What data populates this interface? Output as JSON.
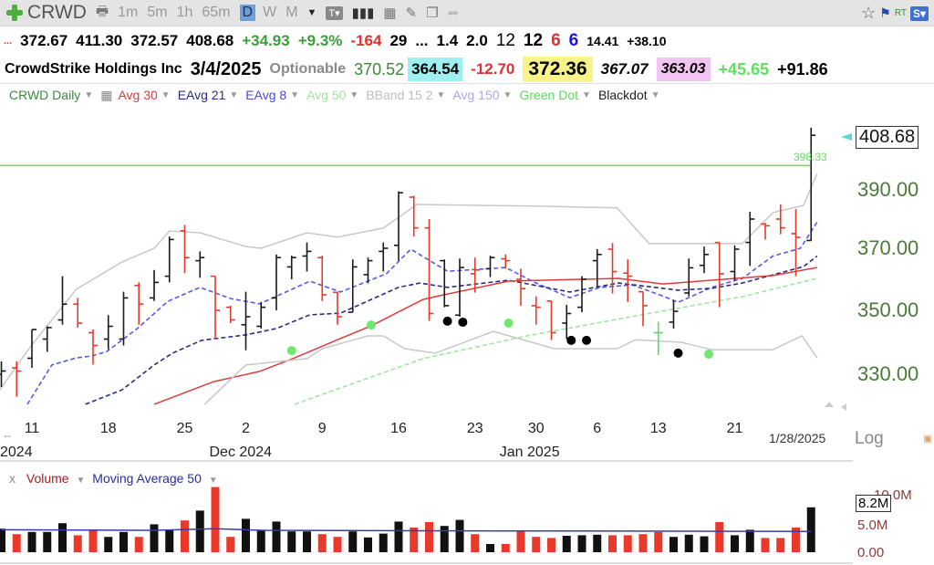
{
  "toolbar": {
    "ticker": "CRWD",
    "intervals": [
      "1m",
      "5m",
      "1h",
      "65m"
    ],
    "selected_interval": "D",
    "other_intervals": [
      "W",
      "M"
    ],
    "icons": [
      "add-icon",
      "print-icon",
      "dropdown-icon",
      "text-tool-icon",
      "bar-style-icon",
      "table-icon",
      "pencil-icon",
      "notes-icon",
      "share-icon",
      "star-icon",
      "flag-icon",
      "scan-icon"
    ],
    "rt_label": "RT",
    "s_label": "S▾"
  },
  "quote_row": {
    "ellipsis": "...",
    "open": "372.67",
    "high": "411.30",
    "low": "372.57",
    "close": "408.68",
    "change": "+34.93",
    "change_pct": "+9.3%",
    "v1": "-164",
    "v2": "29",
    "ellipsis2": "...",
    "v3": "1.4",
    "v4": "2.0",
    "v5": "12",
    "v6": "12",
    "v7": "6",
    "v8": "6",
    "v9": "14.41",
    "v10": "+38.10"
  },
  "info_row": {
    "name": "CrowdStrike Holdings Inc",
    "date": "3/4/2025",
    "optionable": "Optionable",
    "f1": "370.52",
    "f2": "364.54",
    "f3": "-12.70",
    "f4": "372.36",
    "f5": "367.07",
    "f6": "363.03",
    "f7": "+45.65",
    "f8": "+91.86"
  },
  "legend": [
    {
      "label": "CRWD Daily",
      "color": "#3f8a3f"
    },
    {
      "label": "Avg 30",
      "color": "#e03a3a"
    },
    {
      "label": "EAvg 21",
      "color": "#2c2c8c"
    },
    {
      "label": "EAvg 8",
      "color": "#4b4be0"
    },
    {
      "label": "Avg 50",
      "color": "#9ee89e"
    },
    {
      "label": "BBand 15 2",
      "color": "#bdbdbd"
    },
    {
      "label": "Avg 150",
      "color": "#a8a8f0"
    },
    {
      "label": "Green Dot",
      "color": "#5ed85e"
    },
    {
      "label": "Blackdot",
      "color": "#222222"
    }
  ],
  "chart_data": {
    "type": "ohlc",
    "title": "CRWD Daily",
    "y_ticks": [
      "390.00",
      "370.00",
      "350.00",
      "330.00"
    ],
    "y_tick_values": [
      390,
      370,
      350,
      330
    ],
    "last_price_label": "408.68",
    "hline": {
      "value": 398.33,
      "label": "398.33",
      "color": "#5ee05e"
    },
    "x_ticks": [
      {
        "bar": 2,
        "label": "11"
      },
      {
        "bar": 7,
        "label": "18"
      },
      {
        "bar": 12,
        "label": "25"
      },
      {
        "bar": 16,
        "label": "2"
      },
      {
        "bar": 21,
        "label": "9"
      },
      {
        "bar": 26,
        "label": "16"
      },
      {
        "bar": 31,
        "label": "23"
      },
      {
        "bar": 35,
        "label": "30"
      },
      {
        "bar": 39,
        "label": "6"
      },
      {
        "bar": 43,
        "label": "13"
      },
      {
        "bar": 48,
        "label": "21"
      }
    ],
    "month_labels": [
      {
        "bar": 0,
        "label": "2024"
      },
      {
        "bar": 16,
        "label": "Dec 2024"
      },
      {
        "bar": 35,
        "label": "Jan 2025"
      }
    ],
    "end_date": "1/28/2025",
    "scale_label": "Log",
    "bars": [
      [
        330,
        334,
        326,
        331,
        "k",
        4.3
      ],
      [
        332,
        334,
        323,
        331,
        "r",
        3.3
      ],
      [
        335,
        344,
        332,
        344,
        "k",
        3.7
      ],
      [
        341,
        345,
        337,
        344.6,
        "k",
        3.7
      ],
      [
        347,
        361,
        345.5,
        352,
        "k",
        5.3
      ],
      [
        352,
        354,
        344.6,
        346,
        "r",
        3.1
      ],
      [
        343,
        344,
        333,
        339,
        "r",
        4.0
      ],
      [
        341,
        348.5,
        337.8,
        345,
        "k",
        2.8
      ],
      [
        341,
        356,
        339,
        354,
        "k",
        3.7
      ],
      [
        358,
        359,
        345.5,
        352,
        "r",
        2.8
      ],
      [
        354,
        363,
        353,
        359,
        "k",
        5.1
      ],
      [
        361,
        374,
        359,
        373,
        "k",
        4.0
      ],
      [
        376,
        378,
        362,
        367,
        "r",
        5.8
      ],
      [
        366,
        369,
        360.5,
        367,
        "k",
        7.6
      ],
      [
        361,
        361,
        341,
        350,
        "r",
        11.9
      ],
      [
        351,
        351.5,
        346,
        347,
        "r",
        2.8
      ],
      [
        345.5,
        356,
        337.5,
        348,
        "k",
        6.1
      ],
      [
        345,
        352.7,
        344.3,
        351,
        "k",
        4.1
      ],
      [
        354,
        368,
        350,
        367,
        "k",
        5.6
      ],
      [
        364,
        367.6,
        360,
        367,
        "k",
        3.8
      ],
      [
        367.5,
        372,
        362.5,
        369,
        "k",
        3.8
      ],
      [
        367,
        367.6,
        353,
        355,
        "r",
        3.3
      ],
      [
        355.8,
        356,
        345.5,
        348,
        "r",
        2.8
      ],
      [
        349.4,
        366.4,
        349.4,
        364,
        "k",
        3.8
      ],
      [
        361.5,
        367,
        358.7,
        366,
        "k",
        2.7
      ],
      [
        369,
        372,
        362.5,
        370,
        "k",
        3.4
      ],
      [
        371,
        389.5,
        366,
        389,
        "k",
        5.6
      ],
      [
        387.5,
        388,
        374,
        377,
        "r",
        4.5
      ],
      [
        377,
        380,
        346.7,
        349,
        "r",
        5.5
      ],
      [
        366,
        366.4,
        351,
        351.5,
        "k",
        4.8
      ],
      [
        348.5,
        366.7,
        348,
        363.8,
        "k",
        5.9
      ],
      [
        361.8,
        367,
        355.7,
        363,
        "r",
        3.3
      ],
      [
        363.4,
        367.6,
        360.7,
        367,
        "k",
        1.5
      ],
      [
        366.6,
        368,
        363.4,
        366,
        "r",
        1.5
      ],
      [
        360,
        363.4,
        351.5,
        357,
        "r",
        3.8
      ],
      [
        351.5,
        354.5,
        345.5,
        351,
        "r",
        2.8
      ],
      [
        353,
        353,
        340.7,
        343,
        "r",
        2.6
      ],
      [
        346,
        351.8,
        341,
        349,
        "k",
        3.0
      ],
      [
        351,
        361,
        349.4,
        360,
        "k",
        3.1
      ],
      [
        366,
        369.7,
        357.5,
        368,
        "k",
        3.2
      ],
      [
        369.7,
        371.8,
        355.4,
        362.5,
        "r",
        3.1
      ],
      [
        362,
        366.4,
        352.7,
        361,
        "r",
        3.1
      ],
      [
        356,
        356,
        345,
        351.5,
        "r",
        3.3
      ],
      [
        343,
        346.4,
        336,
        343,
        "g",
        3.7
      ],
      [
        346.3,
        353.3,
        344.3,
        349.7,
        "k",
        2.8
      ],
      [
        355.6,
        366.7,
        354.5,
        363.7,
        "k",
        3.2
      ],
      [
        364.5,
        370.6,
        362,
        368,
        "k",
        2.9
      ],
      [
        372,
        372,
        351,
        361.8,
        "r",
        5.5
      ],
      [
        362.5,
        371,
        359.6,
        369.7,
        "k",
        3.1
      ],
      [
        372,
        382.5,
        364.3,
        380,
        "k",
        4.1
      ],
      [
        378.3,
        378.7,
        373,
        377.7,
        "r",
        2.6
      ],
      [
        380,
        385,
        374.8,
        377,
        "r",
        2.6
      ],
      [
        375,
        383.4,
        361,
        373.75,
        "r",
        4.5
      ],
      [
        372.67,
        411.3,
        372.57,
        408.68,
        "k",
        8.2
      ]
    ],
    "series": [
      {
        "name": "EAvg 8",
        "color": "#5a5ae6",
        "dash": true,
        "points": [
          [
            1.7,
            320.6
          ],
          [
            3.3,
            332.9
          ],
          [
            4.9,
            335.1
          ],
          [
            5.9,
            335.7
          ],
          [
            6.9,
            337.1
          ],
          [
            8.9,
            344.3
          ],
          [
            10.9,
            352.9
          ],
          [
            13,
            357.4
          ],
          [
            15,
            353.8
          ],
          [
            16.9,
            352.1
          ],
          [
            20.2,
            359.4
          ],
          [
            22.2,
            355.9
          ],
          [
            25.2,
            361.8
          ],
          [
            26.8,
            369.7
          ],
          [
            29.2,
            362.6
          ],
          [
            33,
            363.8
          ],
          [
            35,
            358.8
          ],
          [
            37.2,
            354.1
          ],
          [
            39.2,
            357.4
          ],
          [
            41.3,
            358.2
          ],
          [
            43.4,
            354.4
          ],
          [
            44.3,
            352.6
          ],
          [
            46.5,
            357.4
          ],
          [
            48.5,
            360.3
          ],
          [
            50.5,
            367.5
          ],
          [
            52.3,
            370
          ],
          [
            53.4,
            379
          ]
        ]
      },
      {
        "name": "EAvg 21",
        "color": "#2c2c80",
        "dash": true,
        "points": [
          [
            5.5,
            320.6
          ],
          [
            7.9,
            325.1
          ],
          [
            10,
            332.9
          ],
          [
            11.2,
            336.6
          ],
          [
            13.1,
            340.6
          ],
          [
            16,
            342.3
          ],
          [
            18,
            344.3
          ],
          [
            20.2,
            348.6
          ],
          [
            22.2,
            349.1
          ],
          [
            26,
            357.4
          ],
          [
            27.4,
            358.8
          ],
          [
            29.2,
            357.4
          ],
          [
            33.2,
            359.7
          ],
          [
            37.2,
            355.9
          ],
          [
            40.4,
            358.8
          ],
          [
            44.3,
            356.5
          ],
          [
            46.5,
            357.1
          ],
          [
            48.5,
            358.8
          ],
          [
            52.5,
            364.1
          ],
          [
            53.4,
            367.5
          ]
        ]
      },
      {
        "name": "Avg 30",
        "color": "#e03a3a",
        "dash": false,
        "points": [
          [
            10,
            320.6
          ],
          [
            13.9,
            327.7
          ],
          [
            16.9,
            330.9
          ],
          [
            19.2,
            335.1
          ],
          [
            22,
            340.8
          ],
          [
            24.2,
            345.1
          ],
          [
            27.6,
            353.5
          ],
          [
            28.4,
            354.4
          ],
          [
            33.2,
            359.4
          ],
          [
            40.4,
            360.3
          ],
          [
            43.3,
            358.5
          ],
          [
            46.5,
            359.7
          ],
          [
            50.5,
            361.2
          ],
          [
            53.4,
            363.8
          ]
        ]
      },
      {
        "name": "Avg 50",
        "color": "#9ee89e",
        "dash": true,
        "points": [
          [
            19.2,
            320.6
          ],
          [
            27.6,
            334.9
          ],
          [
            34.4,
            342
          ],
          [
            42.5,
            349.1
          ],
          [
            48.5,
            354.4
          ],
          [
            53.4,
            360.3
          ]
        ]
      },
      {
        "name": "BBand upper",
        "color": "#c8c8c8",
        "dash": false,
        "points": [
          [
            -0.1,
            325.1
          ],
          [
            1.9,
            338.6
          ],
          [
            4.9,
            356.8
          ],
          [
            7.9,
            365.6
          ],
          [
            10,
            370
          ],
          [
            11,
            375.9
          ],
          [
            13,
            375.3
          ],
          [
            16,
            370.6
          ],
          [
            17,
            370
          ],
          [
            20,
            375.3
          ],
          [
            22,
            373.8
          ],
          [
            25,
            376.9
          ],
          [
            27.2,
            385
          ],
          [
            35.4,
            384.4
          ],
          [
            40.3,
            383.8
          ],
          [
            42.4,
            371.6
          ],
          [
            48.5,
            371.6
          ],
          [
            50.5,
            382.2
          ],
          [
            52.5,
            384.7
          ],
          [
            53.4,
            395.6
          ]
        ]
      },
      {
        "name": "BBand lower",
        "color": "#c8c8c8",
        "dash": false,
        "points": [
          [
            13.3,
            320.6
          ],
          [
            16,
            332.9
          ],
          [
            20,
            334.9
          ],
          [
            21,
            338
          ],
          [
            24,
            342
          ],
          [
            25,
            342
          ],
          [
            26.4,
            338
          ],
          [
            28.4,
            336.6
          ],
          [
            32.2,
            343.4
          ],
          [
            36.2,
            338
          ],
          [
            40.3,
            338
          ],
          [
            41.5,
            340.8
          ],
          [
            44.5,
            340
          ],
          [
            46.5,
            337.7
          ],
          [
            50.5,
            337.7
          ],
          [
            52.4,
            342
          ],
          [
            53.4,
            335.1
          ]
        ]
      }
    ],
    "green_dots": [
      [
        19,
        337.4
      ],
      [
        24.2,
        345.4
      ],
      [
        33.2,
        346
      ],
      [
        46.3,
        336.3
      ]
    ],
    "black_dots": [
      [
        29.2,
        346.6
      ],
      [
        30.2,
        346.3
      ],
      [
        37.3,
        340.6
      ],
      [
        38.3,
        340.6
      ],
      [
        44.3,
        336.6
      ]
    ],
    "volume": {
      "legend_close": "x",
      "label": "Volume",
      "ma_label": "Moving Average 50",
      "unit": "M",
      "last_label": "8.2M",
      "ticks": [
        "10.0M",
        "5.0M",
        "0.00"
      ],
      "ma_points": [
        [
          0,
          4.1
        ],
        [
          10,
          4.0
        ],
        [
          14,
          4.3
        ],
        [
          17,
          4.0
        ],
        [
          30,
          3.9
        ],
        [
          53,
          3.8
        ]
      ]
    }
  }
}
